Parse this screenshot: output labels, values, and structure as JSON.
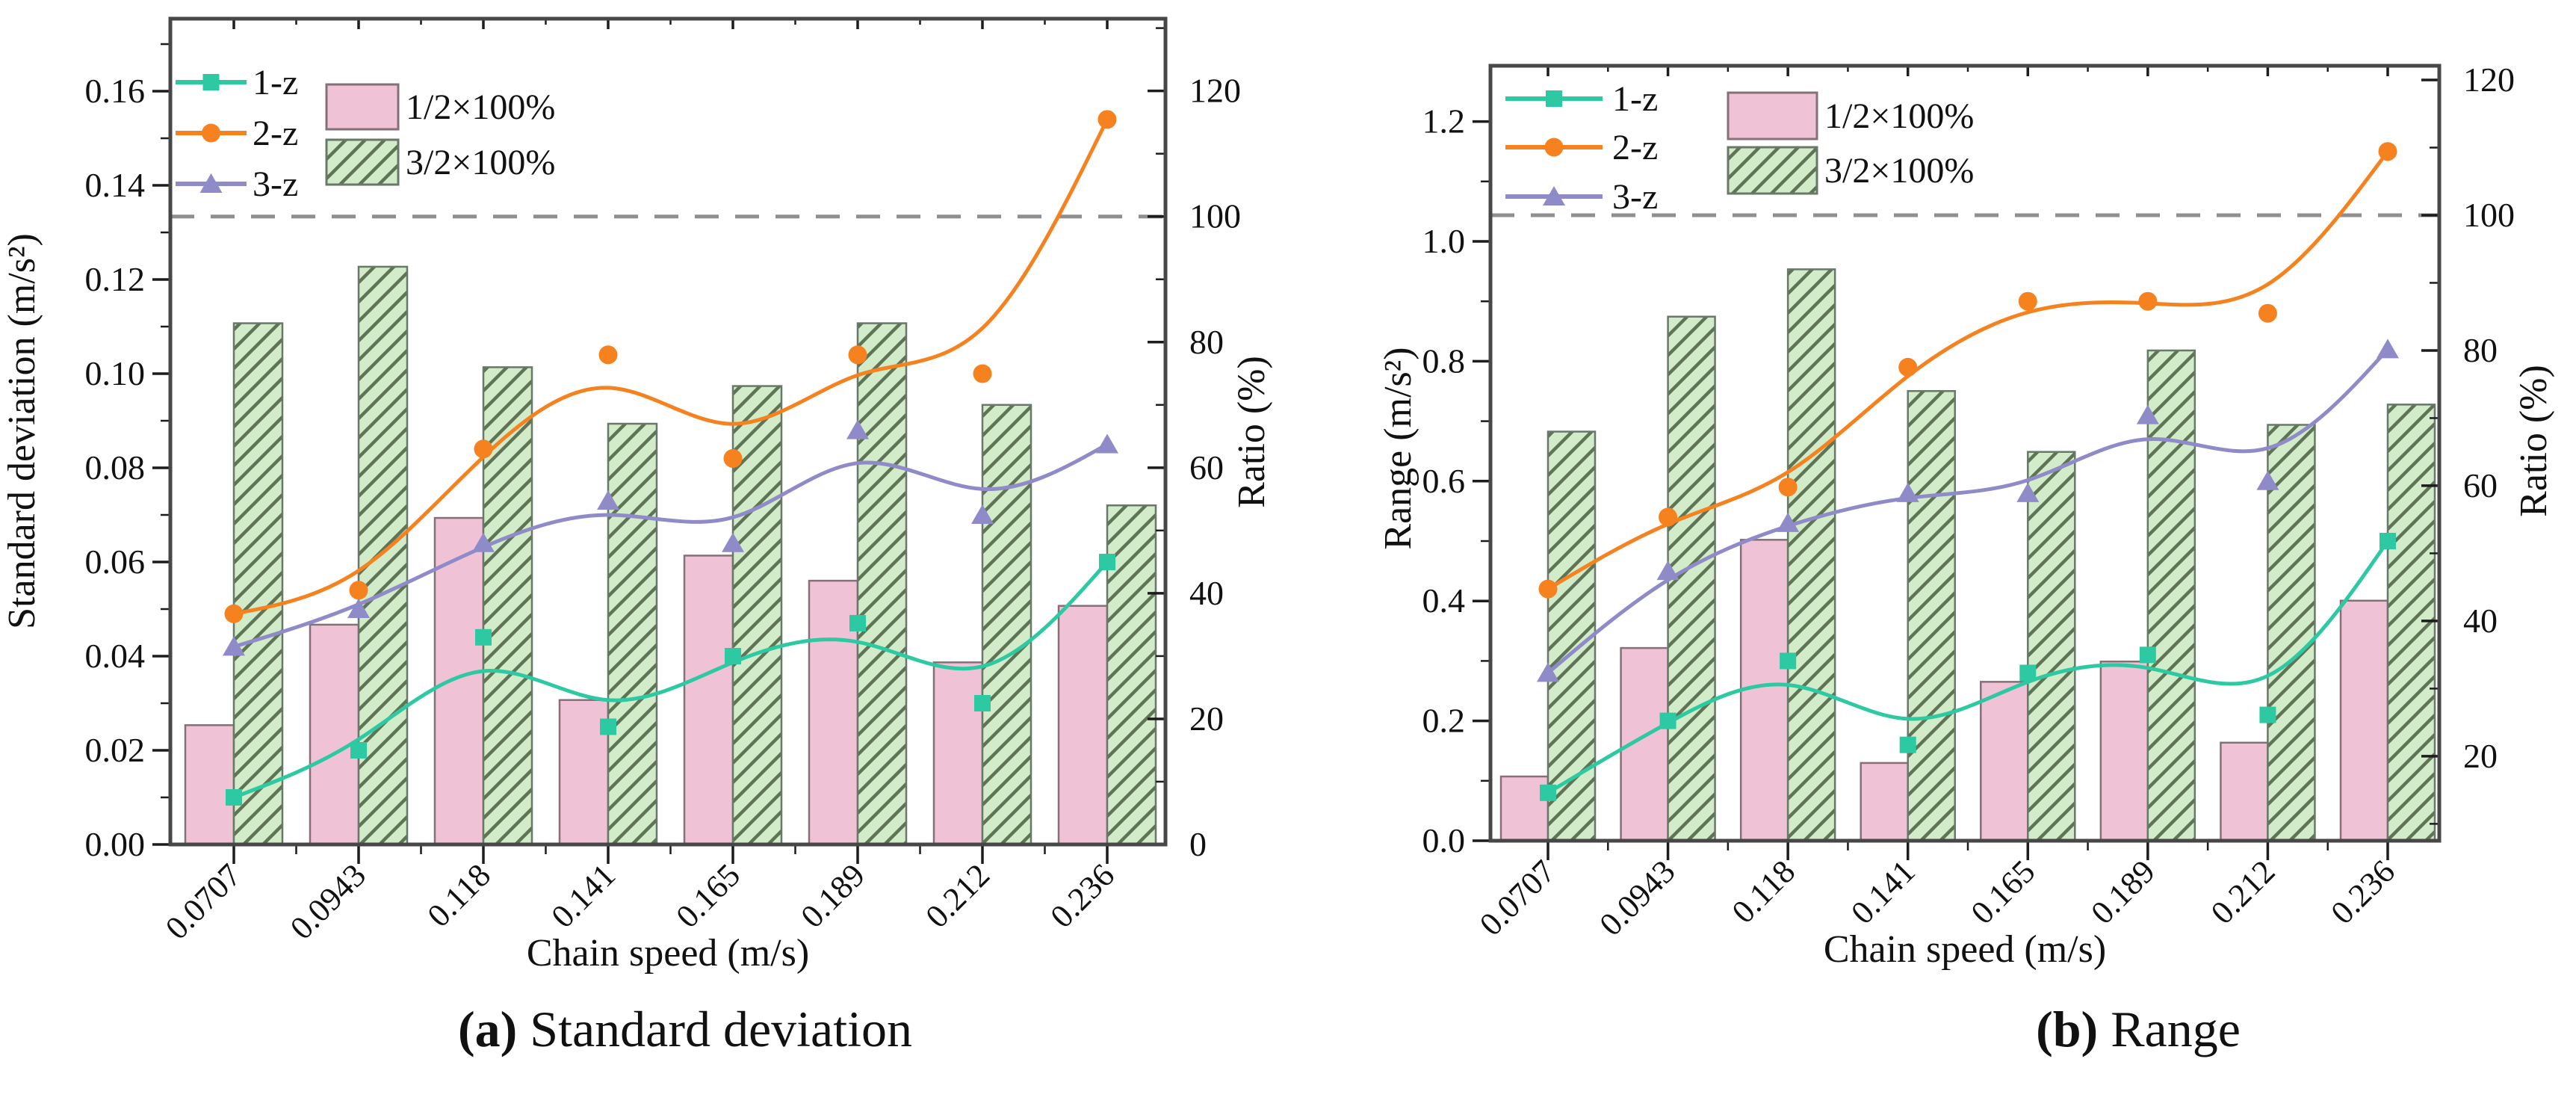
{
  "captions": [
    {
      "tag": "(a)",
      "label": " Standard deviation"
    },
    {
      "tag": "(b)",
      "label": " Range"
    }
  ],
  "palette": {
    "teal": "#2dc9a2",
    "orange": "#f5821f",
    "purple": "#8f8bc8",
    "pink_fill": "#f0c2d6",
    "pink_edge": "#857078",
    "green_fill": "#d2ebc8",
    "green_hatch": "#5f7355",
    "green_edge": "#68786a",
    "frame": "#474747",
    "dashed_ref": "#8f8f8f",
    "text": "#111111"
  },
  "chart_data": [
    {
      "id": "a",
      "type": "bar+line",
      "title": "",
      "xlabel": "Chain speed (m/s)",
      "ylabel_left": "Standard deviation (m/s²)",
      "ylabel_right": "Ratio (%)",
      "categories": [
        "0.0707",
        "0.0943",
        "0.118",
        "0.141",
        "0.165",
        "0.189",
        "0.212",
        "0.236"
      ],
      "series": [
        {
          "name": "1-z",
          "type": "line",
          "axis": "left",
          "marker": "square",
          "color": "teal",
          "values": [
            0.01,
            0.02,
            0.044,
            0.025,
            0.04,
            0.047,
            0.03,
            0.06
          ]
        },
        {
          "name": "2-z",
          "type": "line",
          "axis": "left",
          "marker": "circle",
          "color": "orange",
          "values": [
            0.049,
            0.054,
            0.084,
            0.104,
            0.082,
            0.104,
            0.1,
            0.154
          ]
        },
        {
          "name": "3-z",
          "type": "line",
          "axis": "left",
          "marker": "triangle",
          "color": "purple",
          "values": [
            0.042,
            0.05,
            0.064,
            0.073,
            0.064,
            0.088,
            0.07,
            0.085
          ]
        },
        {
          "name": "1/2×100%",
          "type": "bar",
          "axis": "right",
          "style": "pink",
          "values": [
            19,
            35,
            52,
            23,
            46,
            42,
            29,
            38
          ]
        },
        {
          "name": "3/2×100%",
          "type": "bar",
          "axis": "right",
          "style": "green",
          "values": [
            83,
            92,
            76,
            67,
            73,
            83,
            70,
            54
          ]
        }
      ],
      "left_axis": {
        "min": 0,
        "max": 0.1754,
        "tick_labels": [
          "0.00",
          "0.02",
          "0.04",
          "0.06",
          "0.08",
          "0.10",
          "0.12",
          "0.14",
          "0.16"
        ],
        "tick_values": [
          0,
          0.02,
          0.04,
          0.06,
          0.08,
          0.1,
          0.12,
          0.14,
          0.16
        ],
        "minor": [
          0.01,
          0.03,
          0.05,
          0.07,
          0.09,
          0.11,
          0.13,
          0.15,
          0.17
        ]
      },
      "right_axis": {
        "min": 0,
        "max": 131.5,
        "tick_labels": [
          "0",
          "20",
          "40",
          "60",
          "80",
          "100",
          "120"
        ],
        "tick_values": [
          0,
          20,
          40,
          60,
          80,
          100,
          120
        ],
        "minor": [
          10,
          30,
          50,
          70,
          90,
          110,
          130
        ]
      },
      "ref_line_right": 100,
      "legend_lines": [
        "1-z",
        "2-z",
        "3-z"
      ],
      "legend_bars": [
        "1/2×100%",
        "3/2×100%"
      ],
      "grid": false,
      "legend_position": "top-left-inside"
    },
    {
      "id": "b",
      "type": "bar+line",
      "title": "",
      "xlabel": "Chain speed (m/s)",
      "ylabel_left": "Range (m/s²)",
      "ylabel_right": "Ratio (%)",
      "categories": [
        "0.0707",
        "0.0943",
        "0.118",
        "0.141",
        "0.165",
        "0.189",
        "0.212",
        "0.236"
      ],
      "series": [
        {
          "name": "1-z",
          "type": "line",
          "axis": "left",
          "marker": "square",
          "color": "teal",
          "values": [
            0.08,
            0.2,
            0.3,
            0.16,
            0.28,
            0.31,
            0.21,
            0.5
          ]
        },
        {
          "name": "2-z",
          "type": "line",
          "axis": "left",
          "marker": "circle",
          "color": "orange",
          "values": [
            0.42,
            0.54,
            0.59,
            0.79,
            0.9,
            0.9,
            0.88,
            1.15
          ]
        },
        {
          "name": "3-z",
          "type": "line",
          "axis": "left",
          "marker": "triangle",
          "color": "purple",
          "values": [
            0.28,
            0.45,
            0.53,
            0.58,
            0.58,
            0.71,
            0.6,
            0.82
          ]
        },
        {
          "name": "1/2×100%",
          "type": "bar",
          "axis": "right",
          "style": "pink",
          "values": [
            17,
            36,
            52,
            19,
            31,
            34,
            22,
            43
          ]
        },
        {
          "name": "3/2×100%",
          "type": "bar",
          "axis": "right",
          "style": "green",
          "values": [
            68,
            85,
            92,
            74,
            65,
            80,
            69,
            72
          ]
        }
      ],
      "left_axis": {
        "min": 0,
        "max": 1.293,
        "tick_labels": [
          "0.0",
          "0.2",
          "0.4",
          "0.6",
          "0.8",
          "1.0",
          "1.2"
        ],
        "tick_values": [
          0,
          0.2,
          0.4,
          0.6,
          0.8,
          1.0,
          1.2
        ],
        "minor": [
          0.1,
          0.3,
          0.5,
          0.7,
          0.9,
          1.1
        ]
      },
      "right_axis": {
        "min": 7.5,
        "max": 122.1,
        "tick_labels": [
          "20",
          "40",
          "60",
          "80",
          "100",
          "120"
        ],
        "tick_values": [
          20,
          40,
          60,
          80,
          100,
          120
        ],
        "minor": [
          10,
          30,
          50,
          70,
          90,
          110
        ]
      },
      "ref_line_right": 100,
      "legend_lines": [
        "1-z",
        "2-z",
        "3-z"
      ],
      "legend_bars": [
        "1/2×100%",
        "3/2×100%"
      ],
      "grid": false,
      "legend_position": "top-left-inside"
    }
  ]
}
